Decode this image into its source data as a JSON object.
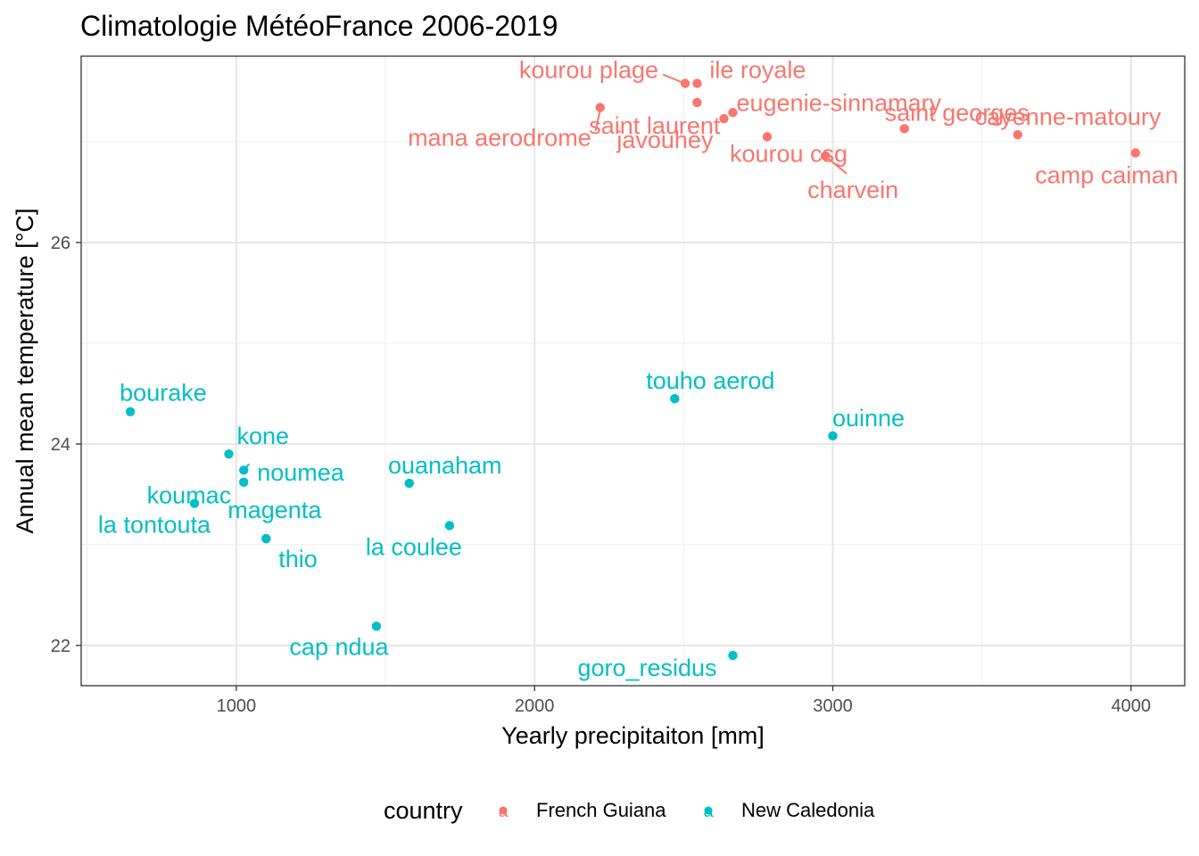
{
  "chart_data": {
    "type": "scatter",
    "title": "Climatologie MétéoFrance 2006-2019",
    "xlabel": "Yearly precipitaiton [mm]",
    "ylabel": "Annual mean temperature [°C]",
    "xlim": [
      480,
      4180
    ],
    "ylim": [
      21.6,
      27.85
    ],
    "x_ticks": [
      1000,
      2000,
      3000,
      4000
    ],
    "y_ticks": [
      22,
      24,
      26
    ],
    "grid": true,
    "legend": {
      "title": "country",
      "position": "bottom",
      "glyph": "a",
      "entries": [
        {
          "name": "French Guiana",
          "color": "#F8766D"
        },
        {
          "name": "New Caledonia",
          "color": "#00BFC4"
        }
      ]
    },
    "series": [
      {
        "name": "French Guiana",
        "color": "#F8766D",
        "points": [
          {
            "label": "kourou plage",
            "x": 2505,
            "y": 27.58
          },
          {
            "label": "ile royale",
            "x": 2545,
            "y": 27.58
          },
          {
            "label": "saint laurent",
            "x": 2545,
            "y": 27.39
          },
          {
            "label": "mana aerodrome",
            "x": 2220,
            "y": 27.34
          },
          {
            "label": "javouhey",
            "x": 2635,
            "y": 27.23
          },
          {
            "label": "eugenie-sinnamary",
            "x": 2665,
            "y": 27.29
          },
          {
            "label": "kourou csg",
            "x": 2780,
            "y": 27.05
          },
          {
            "label": "charvein",
            "x": 2975,
            "y": 26.86
          },
          {
            "label": "saint georges",
            "x": 3240,
            "y": 27.13
          },
          {
            "label": "cayenne-matoury",
            "x": 3620,
            "y": 27.07
          },
          {
            "label": "camp caiman",
            "x": 4015,
            "y": 26.89
          }
        ]
      },
      {
        "name": "New Caledonia",
        "color": "#00BFC4",
        "points": [
          {
            "label": "bourake",
            "x": 645,
            "y": 24.32
          },
          {
            "label": "kone",
            "x": 975,
            "y": 23.9
          },
          {
            "label": "koumac",
            "x": 1025,
            "y": 23.74
          },
          {
            "label": "noumea",
            "x": 1025,
            "y": 23.62
          },
          {
            "label": "la tontouta",
            "x": 860,
            "y": 23.41
          },
          {
            "label": "magenta",
            "x": 1100,
            "y": 23.06
          },
          {
            "label": "thio",
            "x": 1100,
            "y": 23.06
          },
          {
            "label": "ouanaham",
            "x": 1580,
            "y": 23.61
          },
          {
            "label": "la coulee",
            "x": 1715,
            "y": 23.19
          },
          {
            "label": "cap ndua",
            "x": 1470,
            "y": 22.19
          },
          {
            "label": "touho aerod",
            "x": 2470,
            "y": 24.45
          },
          {
            "label": "ouinne",
            "x": 3000,
            "y": 24.08
          },
          {
            "label": "goro_residus",
            "x": 2665,
            "y": 21.9
          }
        ]
      }
    ]
  }
}
